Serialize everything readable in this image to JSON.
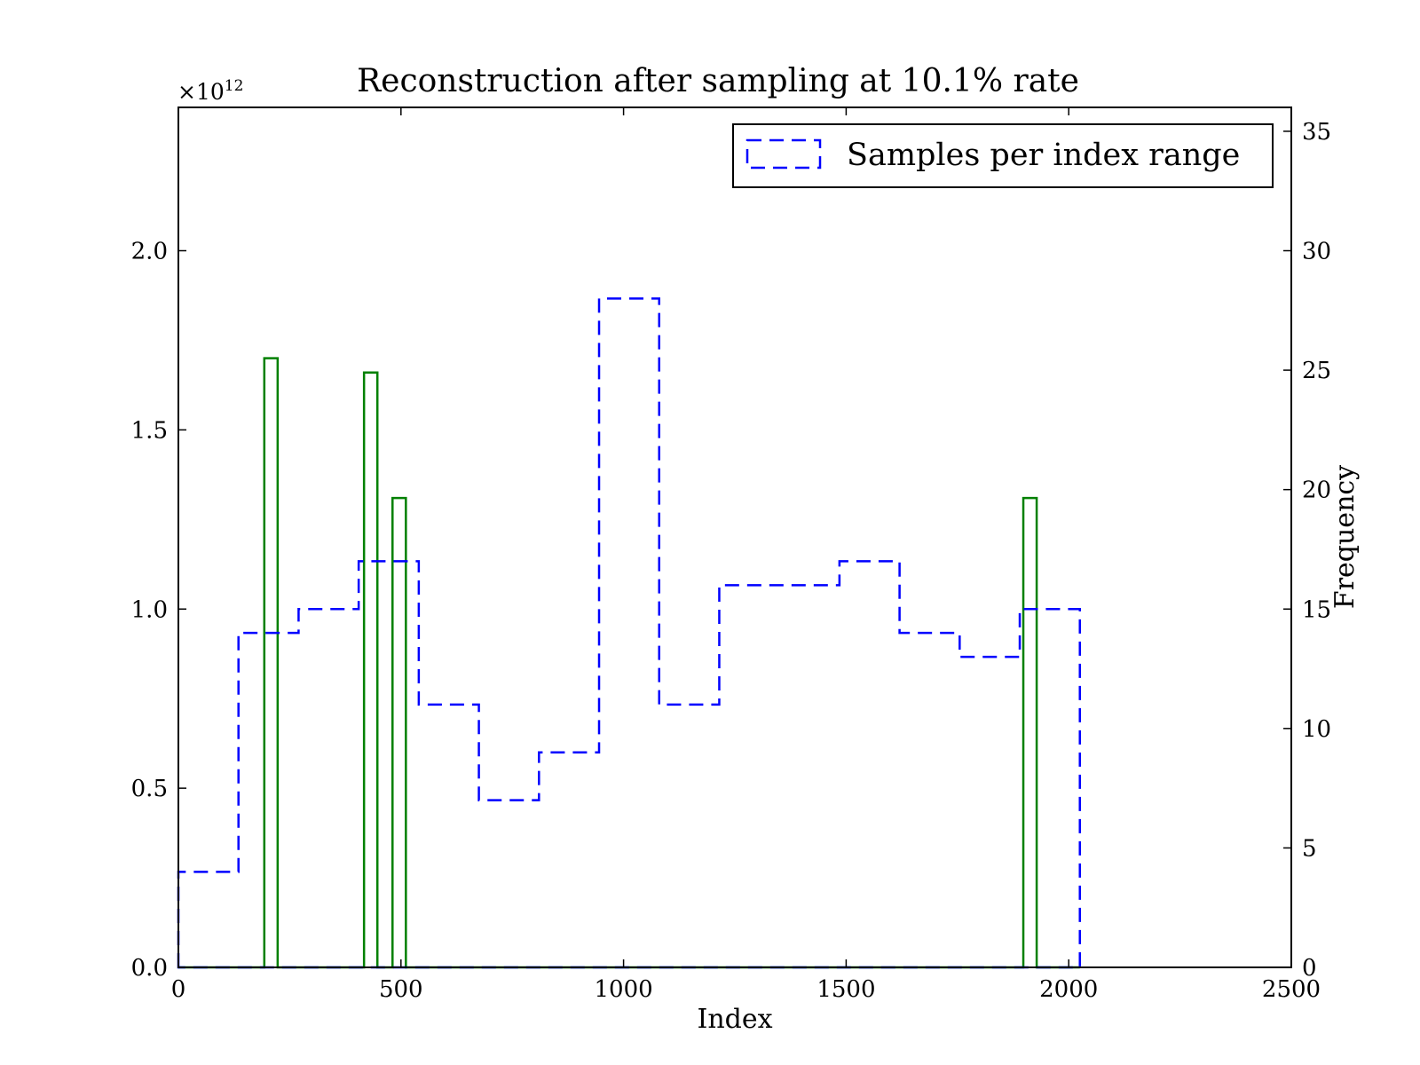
{
  "chart_data": {
    "type": "bar",
    "title": "Reconstruction after sampling at 10.1% rate",
    "xlabel": "Index",
    "ylabel": "",
    "y2label": "Frequency",
    "y_multiplier": "×10",
    "y_multiplier_exp": "12",
    "xlim": [
      0,
      2500
    ],
    "ylim": [
      0,
      2.4
    ],
    "y2lim": [
      0,
      36
    ],
    "x_ticks": [
      0,
      500,
      1000,
      1500,
      2000,
      2500
    ],
    "x_tick_labels": [
      "0",
      "500",
      "1000",
      "1500",
      "2000",
      "2500"
    ],
    "y_ticks": [
      0.0,
      0.5,
      1.0,
      1.5,
      2.0
    ],
    "y_tick_labels": [
      "0.0",
      "0.5",
      "1.0",
      "1.5",
      "2.0"
    ],
    "y2_ticks": [
      0,
      5,
      10,
      15,
      20,
      25,
      30,
      35
    ],
    "y2_tick_labels": [
      "0",
      "5",
      "10",
      "15",
      "20",
      "25",
      "30",
      "35"
    ],
    "legend": {
      "placement": "top-right",
      "entries": [
        "Samples per index range"
      ]
    },
    "colors": {
      "reconstruction": "#008000",
      "samples": "#0000ff"
    },
    "series": [
      {
        "style": "solid",
        "axis": "left",
        "bars": [
          {
            "x0": 193,
            "x1": 223,
            "value": 1.7
          },
          {
            "x0": 417,
            "x1": 447,
            "value": 1.66
          },
          {
            "x0": 481,
            "x1": 511,
            "value": 1.31
          },
          {
            "x0": 1898,
            "x1": 1928,
            "value": 1.31
          }
        ]
      },
      {
        "name": "Samples per index range",
        "style": "dashed",
        "axis": "right",
        "bin_edges": [
          0,
          135,
          270,
          405,
          540,
          675,
          810,
          945,
          1080,
          1215,
          1350,
          1485,
          1620,
          1755,
          1890,
          2025
        ],
        "values": [
          4,
          14,
          15,
          17,
          11,
          7,
          9,
          28,
          11,
          16,
          16,
          17,
          14,
          13,
          15
        ]
      }
    ]
  }
}
